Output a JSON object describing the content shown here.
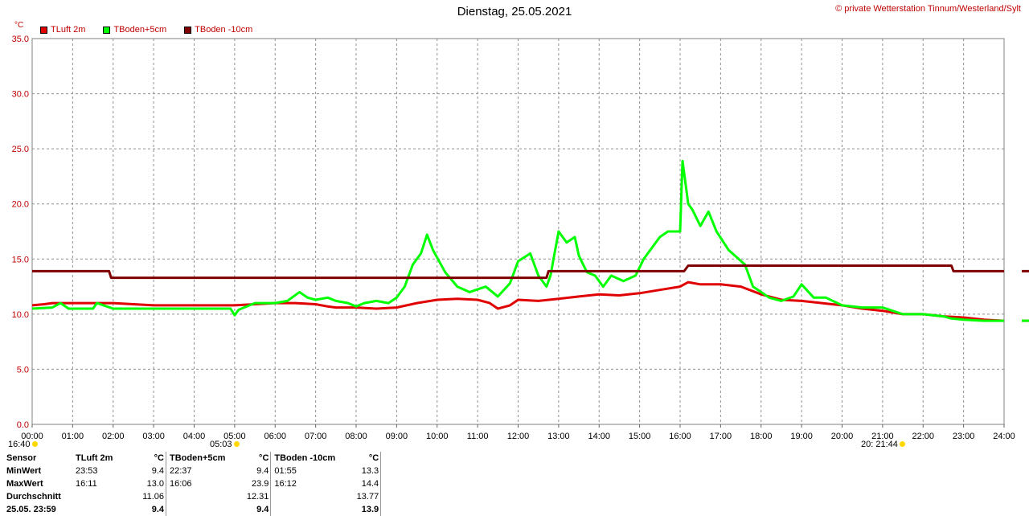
{
  "header": {
    "title": "Dienstag, 25.05.2021",
    "copyright": "© private Wetterstation Tinnum/Westerland/Sylt",
    "unit": "°C"
  },
  "legend": [
    {
      "label": "TLuft 2m",
      "color": "#e00000"
    },
    {
      "label": "TBoden+5cm",
      "color": "#00ff00"
    },
    {
      "label": "TBoden -10cm",
      "color": "#800000"
    }
  ],
  "sun": {
    "sunrise_time": "05:03",
    "sunset_time": "21:44",
    "left_label": "16:40",
    "right_label": "20:"
  },
  "stats": {
    "headers": [
      "Sensor",
      "TLuft 2m",
      "°C",
      "TBoden+5cm",
      "°C",
      "TBoden -10cm",
      "°C"
    ],
    "rows": [
      {
        "label": "MinWert",
        "t1": "23:53",
        "v1": "9.4",
        "t2": "22:37",
        "v2": "9.4",
        "t3": "01:55",
        "v3": "13.3"
      },
      {
        "label": "MaxWert",
        "t1": "16:11",
        "v1": "13.0",
        "t2": "16:06",
        "v2": "23.9",
        "t3": "16:12",
        "v3": "14.4"
      },
      {
        "label": "Durchschnitt",
        "t1": "",
        "v1": "11.06",
        "t2": "",
        "v2": "12.31",
        "t3": "",
        "v3": "13.77"
      },
      {
        "label": "25.05. 23:59",
        "t1": "",
        "v1": "9.4",
        "t2": "",
        "v2": "9.4",
        "t3": "",
        "v3": "13.9"
      }
    ]
  },
  "chart_data": {
    "type": "line",
    "title": "Dienstag, 25.05.2021",
    "ylabel": "°C",
    "xlim": [
      0,
      24
    ],
    "ylim": [
      0,
      35
    ],
    "grid": true,
    "legend_position": "top-left",
    "x_ticks": [
      "00:00",
      "01:00",
      "02:00",
      "03:00",
      "04:00",
      "05:00",
      "06:00",
      "07:00",
      "08:00",
      "09:00",
      "10:00",
      "11:00",
      "12:00",
      "13:00",
      "14:00",
      "15:00",
      "16:00",
      "17:00",
      "18:00",
      "19:00",
      "20:00",
      "21:00",
      "22:00",
      "23:00",
      "24:00"
    ],
    "y_ticks": [
      "0.0",
      "5.0",
      "10.0",
      "15.0",
      "20.0",
      "25.0",
      "30.0",
      "35.0"
    ],
    "series": [
      {
        "name": "TLuft 2m",
        "color": "#e00000",
        "x": [
          0,
          0.3,
          0.5,
          1,
          1.5,
          2,
          2.5,
          3,
          3.5,
          4,
          4.5,
          5,
          5.5,
          6,
          6.5,
          7,
          7.3,
          7.5,
          8,
          8.5,
          9,
          9.5,
          10,
          10.5,
          11,
          11.3,
          11.5,
          11.8,
          12,
          12.5,
          13,
          13.5,
          14,
          14.5,
          15,
          15.5,
          16,
          16.2,
          16.5,
          17,
          17.5,
          18,
          18.5,
          19,
          19.5,
          20,
          20.5,
          21,
          21.5,
          22,
          22.5,
          23,
          23.5,
          24
        ],
        "y": [
          10.8,
          10.9,
          11.0,
          11.0,
          11.0,
          11.0,
          10.9,
          10.8,
          10.8,
          10.8,
          10.8,
          10.8,
          10.9,
          11.0,
          11.0,
          10.9,
          10.7,
          10.6,
          10.6,
          10.5,
          10.6,
          11.0,
          11.3,
          11.4,
          11.3,
          11.0,
          10.5,
          10.8,
          11.3,
          11.2,
          11.4,
          11.6,
          11.8,
          11.7,
          11.9,
          12.2,
          12.5,
          12.9,
          12.7,
          12.7,
          12.5,
          11.8,
          11.3,
          11.2,
          11.0,
          10.8,
          10.5,
          10.3,
          10.0,
          10.0,
          9.8,
          9.7,
          9.5,
          9.4
        ]
      },
      {
        "name": "TBoden+5cm",
        "color": "#00ff00",
        "x": [
          0,
          0.5,
          0.7,
          0.9,
          1.5,
          1.6,
          2,
          3,
          4,
          4.9,
          5,
          5.1,
          5.5,
          6,
          6.3,
          6.6,
          6.8,
          7,
          7.3,
          7.5,
          7.8,
          8,
          8.2,
          8.5,
          8.8,
          9,
          9.2,
          9.4,
          9.6,
          9.75,
          9.9,
          10.2,
          10.5,
          10.8,
          11.2,
          11.5,
          11.8,
          12,
          12.3,
          12.5,
          12.7,
          12.8,
          12.9,
          13,
          13.2,
          13.4,
          13.5,
          13.7,
          13.9,
          14.1,
          14.3,
          14.6,
          14.9,
          15.1,
          15.3,
          15.5,
          15.7,
          16,
          16.06,
          16.2,
          16.3,
          16.5,
          16.7,
          16.9,
          17.2,
          17.6,
          17.8,
          18,
          18.2,
          18.5,
          18.8,
          19,
          19.3,
          19.6,
          20,
          20.5,
          21,
          21.5,
          22,
          22.5,
          22.7,
          23,
          23.5,
          24
        ],
        "y": [
          10.5,
          10.6,
          11.0,
          10.5,
          10.5,
          11.0,
          10.5,
          10.5,
          10.5,
          10.5,
          9.9,
          10.4,
          11.0,
          11.0,
          11.2,
          12.0,
          11.5,
          11.3,
          11.5,
          11.2,
          11.0,
          10.7,
          11.0,
          11.2,
          11.0,
          11.5,
          12.5,
          14.5,
          15.5,
          17.2,
          15.8,
          13.8,
          12.5,
          12.0,
          12.5,
          11.6,
          12.8,
          14.8,
          15.5,
          13.5,
          12.5,
          13.5,
          15.5,
          17.5,
          16.5,
          17.0,
          15.3,
          13.8,
          13.5,
          12.5,
          13.5,
          13.0,
          13.5,
          15.0,
          16.0,
          17.0,
          17.5,
          17.5,
          23.9,
          20.0,
          19.5,
          18.0,
          19.3,
          17.5,
          15.8,
          14.5,
          12.5,
          12.0,
          11.5,
          11.2,
          11.6,
          12.7,
          11.5,
          11.5,
          10.8,
          10.6,
          10.6,
          10.0,
          10.0,
          9.8,
          9.6,
          9.5,
          9.4,
          9.4
        ]
      },
      {
        "name": "TBoden -10cm",
        "color": "#800000",
        "x": [
          0,
          1.9,
          1.95,
          2,
          12.7,
          12.75,
          16.1,
          16.2,
          22.7,
          22.75,
          24
        ],
        "y": [
          13.9,
          13.9,
          13.3,
          13.3,
          13.3,
          13.9,
          13.9,
          14.4,
          14.4,
          13.9,
          13.9
        ]
      }
    ]
  }
}
